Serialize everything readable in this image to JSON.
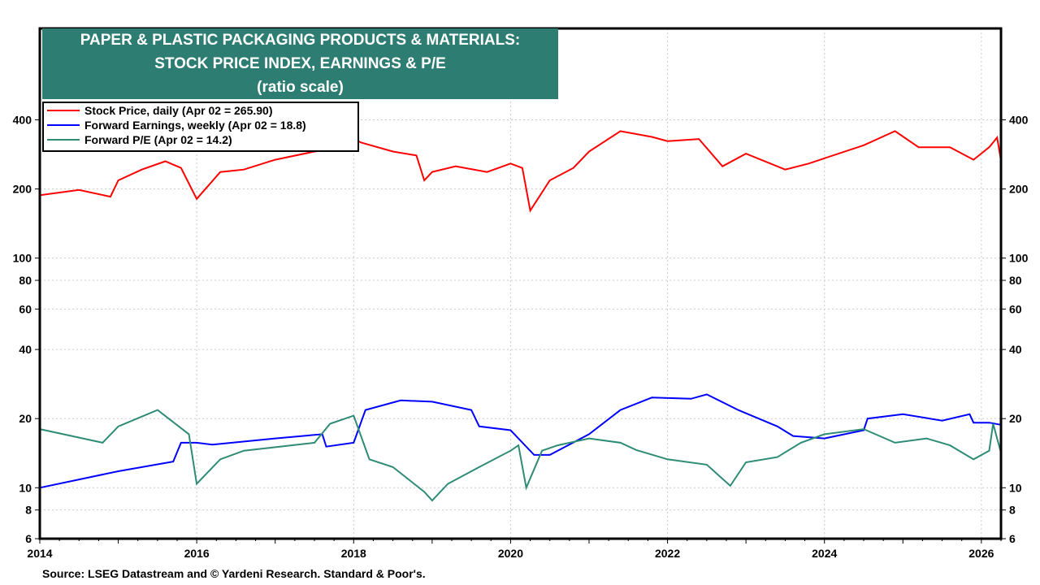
{
  "chart_data": {
    "type": "line",
    "title": [
      "PAPER & PLASTIC PACKAGING PRODUCTS & MATERIALS:",
      "STOCK PRICE INDEX, EARNINGS & P/E",
      "(ratio scale)"
    ],
    "y_scale": "log",
    "ylim": [
      6,
      1000
    ],
    "xlim": [
      2014,
      2026.25
    ],
    "x_ticks": [
      "2014",
      "2016",
      "2018",
      "2020",
      "2022",
      "2024",
      "2026"
    ],
    "y_ticks": [
      400,
      200,
      100,
      80,
      60,
      40,
      20,
      10,
      8,
      6
    ],
    "grid": true,
    "legend_placement": "top-left",
    "series": [
      {
        "name": "Stock Price, daily (Apr 02 = 265.90)",
        "color": "#ff0000",
        "x": [
          2014.0,
          2014.5,
          2014.9,
          2015.0,
          2015.3,
          2015.6,
          2015.8,
          2016.0,
          2016.3,
          2016.6,
          2017.0,
          2017.5,
          2017.8,
          2018.0,
          2018.1,
          2018.5,
          2018.8,
          2018.9,
          2019.0,
          2019.3,
          2019.7,
          2020.0,
          2020.15,
          2020.25,
          2020.5,
          2020.8,
          2021.0,
          2021.4,
          2021.8,
          2022.0,
          2022.4,
          2022.7,
          2023.0,
          2023.5,
          2023.8,
          2024.0,
          2024.5,
          2024.9,
          2025.2,
          2025.6,
          2025.9,
          2026.1,
          2026.2,
          2026.25
        ],
        "y": [
          188,
          198,
          185,
          218,
          243,
          264,
          247,
          181,
          237,
          243,
          268,
          291,
          300,
          330,
          318,
          291,
          280,
          218,
          237,
          251,
          237,
          258,
          247,
          161,
          218,
          247,
          291,
          357,
          337,
          323,
          330,
          251,
          285,
          243,
          258,
          272,
          310,
          357,
          304,
          304,
          268,
          304,
          335,
          265.9
        ]
      },
      {
        "name": "Forward Earnings, weekly (Apr 02 = 18.8)",
        "color": "#0000ff",
        "x": [
          2014.0,
          2015.0,
          2015.7,
          2015.8,
          2016.0,
          2016.2,
          2017.0,
          2017.6,
          2017.65,
          2018.0,
          2018.15,
          2018.6,
          2019.0,
          2019.5,
          2019.6,
          2020.0,
          2020.3,
          2020.5,
          2021.0,
          2021.4,
          2021.8,
          2022.3,
          2022.5,
          2022.9,
          2023.4,
          2023.6,
          2024.0,
          2024.5,
          2024.55,
          2025.0,
          2025.5,
          2025.85,
          2025.9,
          2026.1,
          2026.25
        ],
        "y": [
          10,
          11.8,
          13.0,
          15.7,
          15.7,
          15.4,
          16.4,
          17.1,
          15.1,
          15.7,
          21.8,
          24,
          23.7,
          21.8,
          18.5,
          17.8,
          13.9,
          13.9,
          17.1,
          21.8,
          24.7,
          24.4,
          25.5,
          21.8,
          18.5,
          16.8,
          16.4,
          17.8,
          20,
          20.9,
          19.6,
          20.9,
          19.2,
          19.2,
          18.8
        ]
      },
      {
        "name": "Forward P/E (Apr 02 = 14.2)",
        "color": "#2e8b76",
        "x": [
          2014.0,
          2014.8,
          2015.0,
          2015.5,
          2015.9,
          2016.0,
          2016.3,
          2016.6,
          2017.5,
          2017.7,
          2018.0,
          2018.2,
          2018.5,
          2018.9,
          2019.0,
          2019.2,
          2019.6,
          2020.0,
          2020.1,
          2020.2,
          2020.4,
          2020.6,
          2021.0,
          2021.4,
          2021.6,
          2022.0,
          2022.5,
          2022.8,
          2023.0,
          2023.4,
          2023.7,
          2024.0,
          2024.5,
          2024.9,
          2025.3,
          2025.6,
          2025.9,
          2026.1,
          2026.15,
          2026.25
        ],
        "y": [
          18,
          15.7,
          18.5,
          21.8,
          17.1,
          10.4,
          13.3,
          14.5,
          15.7,
          19,
          20.6,
          13.3,
          12.3,
          9.6,
          8.8,
          10.4,
          12.3,
          14.5,
          15.3,
          10,
          14.5,
          15.3,
          16.4,
          15.7,
          14.6,
          13.3,
          12.6,
          10.2,
          12.9,
          13.6,
          15.7,
          17.1,
          18,
          15.7,
          16.4,
          15.3,
          13.3,
          14.5,
          19,
          14.2
        ]
      }
    ],
    "source": "Source: LSEG Datastream and © Yardeni Research. Standard & Poor's."
  }
}
